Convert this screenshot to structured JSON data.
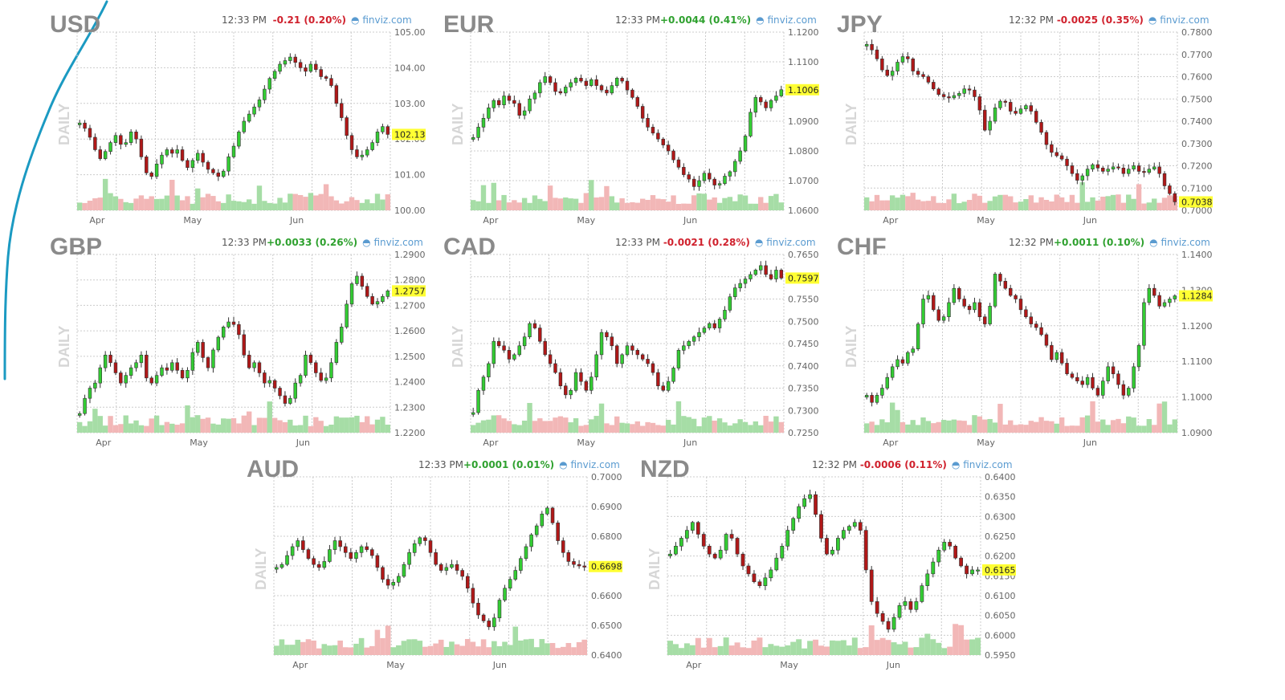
{
  "source_label": "finviz.com",
  "panel_label": "DAILY",
  "colors": {
    "up": "#33cc33",
    "down": "#b01818",
    "vol_up": "#a6dda6",
    "vol_down": "#f2b7b7",
    "last_bg": "#ffff33",
    "grid": "#cccccc",
    "annotation": "#1b9ac2"
  },
  "chart_data": [
    {
      "type": "candlestick",
      "title": "USD",
      "time": "12:33 PM",
      "change": "-0.21 (0.20%)",
      "direction": "down",
      "last": "102.13",
      "ylim": [
        100.0,
        105.0
      ],
      "yticks": [
        "105.00",
        "104.00",
        "103.00",
        "102.00",
        "101.00",
        "100.00"
      ],
      "months": [
        "Apr",
        "May",
        "Jun"
      ],
      "month_pos": [
        0.06,
        0.36,
        0.7
      ],
      "series": [
        102.45,
        102.3,
        102.05,
        101.7,
        101.45,
        101.65,
        101.9,
        102.1,
        101.85,
        101.9,
        102.2,
        102.0,
        101.5,
        101.05,
        100.95,
        101.3,
        101.55,
        101.7,
        101.6,
        101.7,
        101.4,
        101.2,
        101.4,
        101.6,
        101.35,
        101.15,
        101.05,
        100.95,
        101.1,
        101.5,
        101.8,
        102.2,
        102.5,
        102.7,
        102.9,
        103.1,
        103.4,
        103.7,
        103.9,
        104.1,
        104.2,
        104.3,
        104.15,
        104.0,
        103.9,
        104.1,
        103.95,
        103.75,
        103.7,
        103.5,
        103.0,
        102.6,
        102.1,
        101.7,
        101.5,
        101.55,
        101.7,
        101.9,
        102.2,
        102.35,
        102.13
      ]
    },
    {
      "type": "candlestick",
      "title": "EUR",
      "time": "12:33 PM",
      "change": "+0.0044 (0.41%)",
      "direction": "up",
      "last": "1.1006",
      "ylim": [
        1.06,
        1.12
      ],
      "yticks": [
        "1.1200",
        "1.1100",
        "1.1000",
        "1.0900",
        "1.0800",
        "1.0700",
        "1.0600"
      ],
      "months": [
        "Apr",
        "May",
        "Jun"
      ],
      "month_pos": [
        0.06,
        0.36,
        0.7
      ],
      "series": [
        1.0845,
        1.088,
        1.091,
        1.0945,
        1.097,
        1.0955,
        1.0985,
        1.097,
        1.096,
        1.092,
        1.0935,
        1.0975,
        1.0995,
        1.103,
        1.105,
        1.103,
        1.1,
        1.0995,
        1.1015,
        1.103,
        1.1045,
        1.1035,
        1.102,
        1.104,
        1.102,
        1.1005,
        1.0995,
        1.102,
        1.1045,
        1.1035,
        1.1005,
        1.098,
        1.095,
        1.091,
        1.088,
        1.086,
        1.084,
        1.082,
        1.08,
        1.077,
        1.0745,
        1.072,
        1.0705,
        1.068,
        1.07,
        1.0725,
        1.0705,
        1.0685,
        1.069,
        1.0715,
        1.073,
        1.0765,
        1.08,
        1.085,
        1.093,
        1.098,
        1.0965,
        1.0945,
        1.097,
        1.0985,
        1.1006
      ]
    },
    {
      "type": "candlestick",
      "title": "JPY",
      "time": "12:32 PM",
      "change": "-0.0025 (0.35%)",
      "direction": "down",
      "last": "0.7038",
      "ylim": [
        0.7,
        0.78
      ],
      "yticks": [
        "0.7800",
        "0.7700",
        "0.7600",
        "0.7500",
        "0.7400",
        "0.7300",
        "0.7200",
        "0.7100",
        "0.7000"
      ],
      "months": [
        "Apr",
        "May",
        "Jun"
      ],
      "month_pos": [
        0.08,
        0.38,
        0.72
      ],
      "series": [
        0.7745,
        0.772,
        0.768,
        0.763,
        0.7605,
        0.7625,
        0.7665,
        0.769,
        0.768,
        0.7625,
        0.761,
        0.76,
        0.7575,
        0.7545,
        0.752,
        0.751,
        0.7505,
        0.7515,
        0.7525,
        0.7545,
        0.754,
        0.751,
        0.745,
        0.736,
        0.74,
        0.746,
        0.749,
        0.7485,
        0.7445,
        0.7435,
        0.7455,
        0.747,
        0.7445,
        0.7395,
        0.735,
        0.7295,
        0.726,
        0.7245,
        0.723,
        0.72,
        0.7165,
        0.7135,
        0.7155,
        0.7185,
        0.7205,
        0.719,
        0.7175,
        0.7185,
        0.7195,
        0.719,
        0.7165,
        0.7185,
        0.72,
        0.7175,
        0.717,
        0.7185,
        0.7195,
        0.7165,
        0.711,
        0.7075,
        0.7038
      ]
    },
    {
      "type": "candlestick",
      "title": "GBP",
      "time": "12:33 PM",
      "change": "+0.0033 (0.26%)",
      "direction": "up",
      "last": "1.2757",
      "ylim": [
        1.22,
        1.29
      ],
      "yticks": [
        "1.2900",
        "1.2800",
        "1.2700",
        "1.2600",
        "1.2500",
        "1.2400",
        "1.2300",
        "1.2200"
      ],
      "months": [
        "Apr",
        "May",
        "Jun"
      ],
      "month_pos": [
        0.08,
        0.38,
        0.72
      ],
      "series": [
        1.2275,
        1.2335,
        1.2375,
        1.2395,
        1.2455,
        1.2505,
        1.2475,
        1.2435,
        1.2395,
        1.2425,
        1.2455,
        1.2475,
        1.2505,
        1.2415,
        1.2395,
        1.2425,
        1.2455,
        1.2445,
        1.2475,
        1.2445,
        1.2415,
        1.2445,
        1.2515,
        1.2555,
        1.2495,
        1.2455,
        1.2525,
        1.2575,
        1.2615,
        1.2635,
        1.2625,
        1.2585,
        1.2505,
        1.2455,
        1.2475,
        1.2435,
        1.2395,
        1.2405,
        1.2375,
        1.2345,
        1.2315,
        1.2335,
        1.2395,
        1.2425,
        1.2505,
        1.2475,
        1.2435,
        1.2405,
        1.2415,
        1.2475,
        1.2555,
        1.2615,
        1.2705,
        1.2785,
        1.2815,
        1.2775,
        1.2735,
        1.2705,
        1.2715,
        1.2735,
        1.2757
      ]
    },
    {
      "type": "candlestick",
      "title": "CAD",
      "time": "12:33 PM",
      "change": "-0.0021 (0.28%)",
      "direction": "down",
      "last": "0.7597",
      "ylim": [
        0.725,
        0.765
      ],
      "yticks": [
        "0.7650",
        "0.7600",
        "0.7550",
        "0.7500",
        "0.7450",
        "0.7400",
        "0.7350",
        "0.7300",
        "0.7250"
      ],
      "months": [
        "Apr",
        "May",
        "Jun"
      ],
      "month_pos": [
        0.06,
        0.36,
        0.7
      ],
      "series": [
        0.7295,
        0.7345,
        0.7375,
        0.7405,
        0.7455,
        0.7445,
        0.7435,
        0.7415,
        0.7425,
        0.7445,
        0.7465,
        0.7495,
        0.7485,
        0.7455,
        0.7425,
        0.7405,
        0.7385,
        0.7355,
        0.7335,
        0.7345,
        0.7385,
        0.7365,
        0.7345,
        0.7375,
        0.7425,
        0.7475,
        0.7465,
        0.7445,
        0.7405,
        0.7425,
        0.7445,
        0.7435,
        0.7425,
        0.7415,
        0.7405,
        0.7385,
        0.7355,
        0.7345,
        0.7365,
        0.7395,
        0.7435,
        0.7445,
        0.7455,
        0.7465,
        0.7475,
        0.7485,
        0.7495,
        0.7485,
        0.7505,
        0.7525,
        0.7555,
        0.7575,
        0.7585,
        0.7595,
        0.7605,
        0.7615,
        0.7625,
        0.7605,
        0.7595,
        0.7615,
        0.7597
      ]
    },
    {
      "type": "candlestick",
      "title": "CHF",
      "time": "12:32 PM",
      "change": "+0.0011 (0.10%)",
      "direction": "up",
      "last": "1.1284",
      "ylim": [
        1.09,
        1.14
      ],
      "yticks": [
        "1.1400",
        "1.1300",
        "1.1200",
        "1.1100",
        "1.1000",
        "1.0900"
      ],
      "months": [
        "Apr",
        "May",
        "Jun"
      ],
      "month_pos": [
        0.08,
        0.38,
        0.72
      ],
      "series": [
        1.1005,
        1.0985,
        1.1005,
        1.1025,
        1.1055,
        1.1085,
        1.1105,
        1.1095,
        1.1125,
        1.1135,
        1.1205,
        1.1275,
        1.1285,
        1.1245,
        1.1215,
        1.1225,
        1.1265,
        1.1305,
        1.1275,
        1.1255,
        1.1245,
        1.1265,
        1.1225,
        1.1205,
        1.1255,
        1.1345,
        1.1325,
        1.1305,
        1.1285,
        1.1275,
        1.1245,
        1.1225,
        1.1205,
        1.1195,
        1.1175,
        1.1145,
        1.1105,
        1.1125,
        1.1095,
        1.1065,
        1.1055,
        1.1045,
        1.1035,
        1.1055,
        1.1025,
        1.1005,
        1.1045,
        1.1085,
        1.1065,
        1.1035,
        1.1005,
        1.1025,
        1.1085,
        1.1145,
        1.1265,
        1.1305,
        1.1285,
        1.1255,
        1.1265,
        1.1275,
        1.1284
      ]
    },
    {
      "type": "candlestick",
      "title": "AUD",
      "time": "12:33 PM",
      "change": "+0.0001 (0.01%)",
      "direction": "up",
      "last": "0.6698",
      "ylim": [
        0.64,
        0.7
      ],
      "yticks": [
        "0.7000",
        "0.6900",
        "0.6800",
        "0.6700",
        "0.6600",
        "0.6500",
        "0.6400"
      ],
      "months": [
        "Apr",
        "May",
        "Jun"
      ],
      "month_pos": [
        0.08,
        0.38,
        0.72
      ],
      "series": [
        0.6695,
        0.6705,
        0.6735,
        0.6765,
        0.6785,
        0.6755,
        0.6725,
        0.6705,
        0.6695,
        0.6715,
        0.6755,
        0.6785,
        0.6765,
        0.6745,
        0.6725,
        0.6745,
        0.6765,
        0.6755,
        0.6735,
        0.6695,
        0.6655,
        0.6635,
        0.6645,
        0.6665,
        0.6705,
        0.6745,
        0.6775,
        0.6795,
        0.6785,
        0.6745,
        0.6705,
        0.6685,
        0.6695,
        0.6705,
        0.6685,
        0.6665,
        0.6625,
        0.6575,
        0.6535,
        0.6515,
        0.6495,
        0.6525,
        0.6585,
        0.6625,
        0.6655,
        0.6685,
        0.6725,
        0.6765,
        0.6805,
        0.6835,
        0.6875,
        0.6895,
        0.6845,
        0.6785,
        0.6745,
        0.6715,
        0.6705,
        0.67,
        0.6698
      ]
    },
    {
      "type": "candlestick",
      "title": "NZD",
      "time": "12:32 PM",
      "change": "-0.0006 (0.11%)",
      "direction": "down",
      "last": "0.6165",
      "ylim": [
        0.595,
        0.64
      ],
      "yticks": [
        "0.6400",
        "0.6350",
        "0.6300",
        "0.6250",
        "0.6200",
        "0.6150",
        "0.6100",
        "0.6050",
        "0.6000",
        "0.5950"
      ],
      "months": [
        "Apr",
        "May",
        "Jun"
      ],
      "month_pos": [
        0.08,
        0.38,
        0.72
      ],
      "series": [
        0.6205,
        0.6225,
        0.6245,
        0.6265,
        0.6285,
        0.6255,
        0.6225,
        0.6205,
        0.6195,
        0.6215,
        0.6255,
        0.6245,
        0.6205,
        0.6175,
        0.6155,
        0.6135,
        0.6125,
        0.6145,
        0.6165,
        0.6195,
        0.6225,
        0.6265,
        0.6295,
        0.6325,
        0.6345,
        0.6355,
        0.6305,
        0.6245,
        0.6205,
        0.6215,
        0.6245,
        0.6265,
        0.6275,
        0.6285,
        0.6265,
        0.6165,
        0.6085,
        0.6055,
        0.6035,
        0.6015,
        0.6045,
        0.6075,
        0.6085,
        0.6065,
        0.6085,
        0.6125,
        0.6155,
        0.6185,
        0.6215,
        0.6235,
        0.6225,
        0.6195,
        0.6175,
        0.6155,
        0.6165,
        0.6165
      ]
    }
  ]
}
